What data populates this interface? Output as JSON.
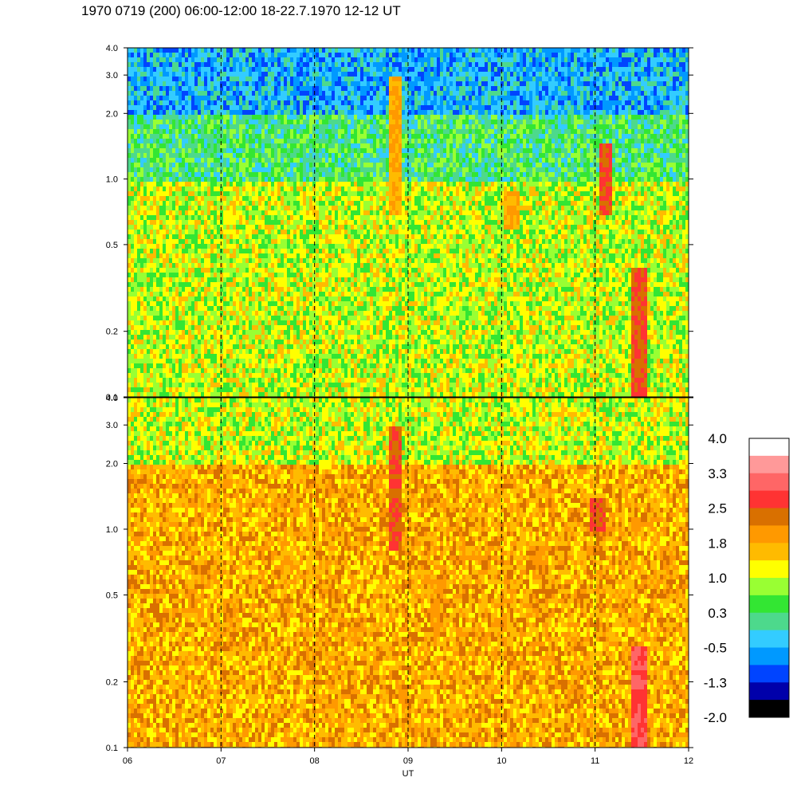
{
  "title": "1970 0719 (200) 06:00-12:00 18-22.7.1970  12-12 UT",
  "chart_data": [
    {
      "type": "heatmap",
      "panel": "upper",
      "xlabel": "",
      "ylabel": "",
      "x_ticks": [
        "06",
        "07",
        "08",
        "09",
        "10",
        "11",
        "12"
      ],
      "y_scale": "log",
      "y_ticks": [
        "4.0",
        "3.0",
        "2.0",
        "1.0",
        "0.5",
        "0.2",
        "0.1"
      ],
      "y_tick_values": [
        4.0,
        3.0,
        2.0,
        1.0,
        0.5,
        0.2,
        0.1
      ],
      "ylim": [
        0.1,
        4.0
      ],
      "xlim": [
        6,
        12
      ],
      "dashed_vertical_lines_at": [
        7,
        8,
        9,
        10,
        11
      ],
      "dominant_level_by_band": [
        {
          "y_range": [
            2.0,
            4.0
          ],
          "level": -0.5
        },
        {
          "y_range": [
            1.0,
            2.0
          ],
          "level": 0.3
        },
        {
          "y_range": [
            0.3,
            1.0
          ],
          "level": 1.0
        },
        {
          "y_range": [
            0.1,
            0.3
          ],
          "level": 1.0
        }
      ],
      "features": [
        {
          "x": 8.85,
          "y_range": [
            0.7,
            3.0
          ],
          "level": 1.8
        },
        {
          "x": 10.1,
          "y_range": [
            0.6,
            0.9
          ],
          "level": 1.8
        },
        {
          "x": 11.1,
          "y_range": [
            0.7,
            1.5
          ],
          "level": 2.5
        },
        {
          "x": 11.45,
          "y_range": [
            0.1,
            0.4
          ],
          "level": 2.5
        }
      ]
    },
    {
      "type": "heatmap",
      "panel": "lower",
      "xlabel": "UT",
      "ylabel": "",
      "x_ticks": [
        "06",
        "07",
        "08",
        "09",
        "10",
        "11",
        "12"
      ],
      "y_scale": "log",
      "y_ticks": [
        "4.0",
        "3.0",
        "2.0",
        "1.0",
        "0.5",
        "0.2",
        "0.1"
      ],
      "y_tick_values": [
        4.0,
        3.0,
        2.0,
        1.0,
        0.5,
        0.2,
        0.1
      ],
      "ylim": [
        0.1,
        4.0
      ],
      "xlim": [
        6,
        12
      ],
      "dashed_vertical_lines_at": [
        7,
        8,
        9,
        10,
        11
      ],
      "dominant_level_by_band": [
        {
          "y_range": [
            2.0,
            4.0
          ],
          "level": 1.0
        },
        {
          "y_range": [
            0.5,
            2.0
          ],
          "level": 1.8
        },
        {
          "y_range": [
            0.1,
            0.5
          ],
          "level": 1.8
        }
      ],
      "features": [
        {
          "x": 8.85,
          "y_range": [
            0.8,
            3.0
          ],
          "level": 2.5
        },
        {
          "x": 9.3,
          "y_range": [
            0.35,
            0.6
          ],
          "level": 2.0
        },
        {
          "x": 10.4,
          "y_range": [
            0.6,
            0.85
          ],
          "level": 2.0
        },
        {
          "x": 11.0,
          "y_range": [
            1.0,
            1.4
          ],
          "level": 2.5
        },
        {
          "x": 11.45,
          "y_range": [
            0.1,
            0.3
          ],
          "level": 2.9
        }
      ]
    }
  ],
  "colorbar": {
    "labels": [
      "4.0",
      "3.3",
      "2.5",
      "1.8",
      "1.0",
      "0.3",
      "-0.5",
      "-1.3",
      "-2.0"
    ],
    "colors": [
      "#ffffff",
      "#ff9999",
      "#ff6666",
      "#ff3333",
      "#d97000",
      "#ff9900",
      "#ffbb00",
      "#ffff00",
      "#99ff33",
      "#33e633",
      "#4dd98c",
      "#33ccff",
      "#0099ff",
      "#0044ff",
      "#0000aa",
      "#000000"
    ]
  }
}
